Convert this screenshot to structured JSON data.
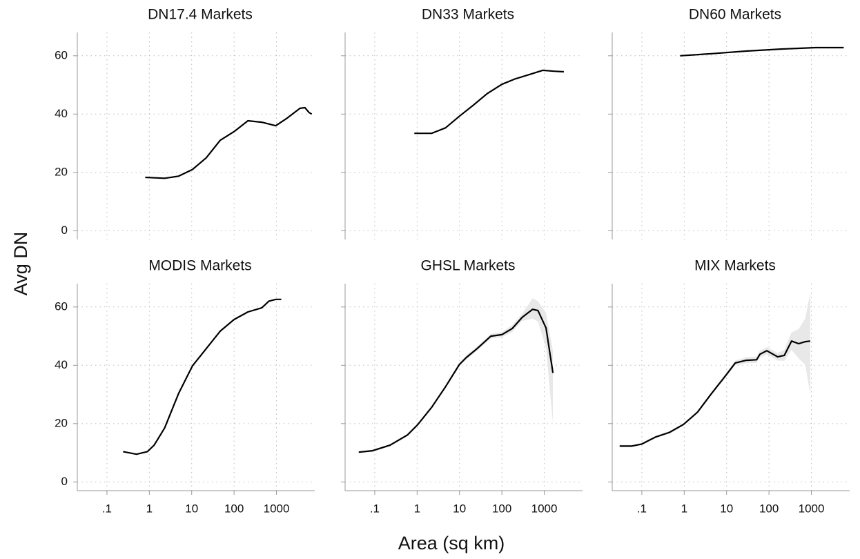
{
  "ylabel": "Avg DN",
  "xlabel": "Area (sq km)",
  "chart_data": [
    {
      "type": "line",
      "title": "DN17.4 Markets",
      "xscale": "log",
      "grid": true,
      "x_tick_labels": false,
      "y_tick_labels": true,
      "color": "#000000",
      "band_color": "#e8e8e8",
      "xlim": [
        0.02,
        8000
      ],
      "ylim": [
        -3,
        68
      ],
      "xticks": [
        0.1,
        1,
        10,
        100,
        1000
      ],
      "yticks": [
        0,
        20,
        40,
        60
      ],
      "x": [
        0.8,
        2.3,
        4.9,
        10.4,
        22,
        47,
        100,
        212,
        450,
        960,
        1700,
        3600,
        4700,
        5900,
        6800
      ],
      "values": [
        18.3,
        18,
        18.7,
        21,
        25,
        31,
        34,
        37.7,
        37.2,
        36,
        38.4,
        42,
        42.2,
        40.5,
        40
      ]
    },
    {
      "type": "line",
      "title": "DN33 Markets",
      "xscale": "log",
      "grid": true,
      "x_tick_labels": false,
      "y_tick_labels": false,
      "color": "#000000",
      "band_color": "#e8e8e8",
      "xlim": [
        0.02,
        8000
      ],
      "ylim": [
        -3,
        68
      ],
      "xticks": [
        0.1,
        1,
        10,
        100,
        1000
      ],
      "yticks": [
        0,
        20,
        40,
        60
      ],
      "x": [
        0.86,
        2.2,
        4.7,
        10,
        21,
        45,
        100,
        200,
        430,
        920,
        1700,
        2900
      ],
      "values": [
        33.4,
        33.4,
        35.3,
        39.3,
        43,
        47,
        50.2,
        52,
        53.5,
        55,
        54.7,
        54.5
      ]
    },
    {
      "type": "line",
      "title": "DN60 Markets",
      "xscale": "log",
      "grid": true,
      "x_tick_labels": false,
      "y_tick_labels": false,
      "color": "#000000",
      "band_color": "#e8e8e8",
      "xlim": [
        0.02,
        8000
      ],
      "ylim": [
        -3,
        68
      ],
      "xticks": [
        0.1,
        1,
        10,
        100,
        1000
      ],
      "yticks": [
        0,
        20,
        40,
        60
      ],
      "x": [
        0.8,
        4.4,
        29,
        190,
        1250,
        5800
      ],
      "values": [
        60,
        60.7,
        61.6,
        62.3,
        62.8,
        62.8
      ]
    },
    {
      "type": "line",
      "title": "MODIS Markets",
      "xscale": "log",
      "grid": true,
      "x_tick_labels": true,
      "y_tick_labels": true,
      "color": "#000000",
      "band_color": "#e8e8e8",
      "xlim": [
        0.02,
        8000
      ],
      "ylim": [
        -3,
        68
      ],
      "xticks": [
        {
          "value": 0.1,
          "label": ".1"
        },
        1,
        10,
        100,
        1000
      ],
      "yticks": [
        0,
        20,
        40,
        60
      ],
      "x": [
        0.24,
        0.5,
        0.9,
        1.3,
        2.3,
        4.9,
        10.4,
        22,
        47,
        100,
        212,
        450,
        660,
        960,
        1300
      ],
      "values": [
        10.4,
        9.5,
        10.4,
        12.6,
        18.5,
        30.3,
        39.8,
        45.7,
        51.7,
        55.7,
        58.3,
        59.7,
        62,
        62.6,
        62.6
      ]
    },
    {
      "type": "line",
      "title": "GHSL Markets",
      "xscale": "log",
      "grid": true,
      "x_tick_labels": true,
      "y_tick_labels": false,
      "color": "#000000",
      "band_color": "#e8e8e8",
      "xlim": [
        0.02,
        8000
      ],
      "ylim": [
        -3,
        68
      ],
      "xticks": [
        {
          "value": 0.1,
          "label": ".1"
        },
        1,
        10,
        100,
        1000
      ],
      "yticks": [
        0,
        20,
        40,
        60
      ],
      "x": [
        0.042,
        0.089,
        0.23,
        0.59,
        1.04,
        2.2,
        4.7,
        10,
        14.6,
        26,
        55,
        100,
        175,
        300,
        530,
        710,
        1100,
        1600
      ],
      "values": [
        10.2,
        10.7,
        12.6,
        16.1,
        19.7,
        25.6,
        32.7,
        40.3,
        42.7,
        45.7,
        50,
        50.5,
        52.6,
        56.4,
        59.2,
        58.8,
        52.8,
        37.4
      ],
      "ci_lower": [
        9.8,
        10.3,
        12.2,
        15.7,
        19.3,
        25.2,
        32.2,
        39.7,
        42,
        45,
        49.2,
        49.6,
        51.4,
        55.2,
        56,
        55,
        46,
        20
      ],
      "ci_upper": [
        10.6,
        11.1,
        13,
        16.5,
        20.1,
        26,
        33.2,
        40.9,
        43.4,
        46.4,
        50.8,
        51.4,
        53.8,
        57.6,
        63,
        62,
        58,
        45
      ]
    },
    {
      "type": "line",
      "title": "MIX Markets",
      "xscale": "log",
      "grid": true,
      "x_tick_labels": true,
      "y_tick_labels": false,
      "color": "#000000",
      "band_color": "#e8e8e8",
      "xlim": [
        0.02,
        8000
      ],
      "ylim": [
        -3,
        68
      ],
      "xticks": [
        {
          "value": 0.1,
          "label": ".1"
        },
        1,
        10,
        100,
        1000
      ],
      "yticks": [
        0,
        20,
        40,
        60
      ],
      "x": [
        0.03,
        0.057,
        0.1,
        0.21,
        0.45,
        0.96,
        2.05,
        4.4,
        9.3,
        16,
        29,
        51,
        61,
        89,
        160,
        230,
        340,
        500,
        720,
        940
      ],
      "values": [
        12.3,
        12.3,
        13,
        15.4,
        17,
        19.7,
        23.9,
        30.3,
        36.3,
        40.8,
        41.7,
        41.9,
        43.8,
        45,
        42.9,
        43.4,
        48.3,
        47.4,
        48.1,
        48.3
      ],
      "ci_lower": [
        11.9,
        11.9,
        12.6,
        15,
        16.6,
        19.3,
        23.5,
        29.8,
        35.7,
        40,
        40.7,
        40.8,
        42.6,
        43.8,
        41.6,
        41.5,
        45.3,
        42.4,
        40.1,
        30
      ],
      "ci_upper": [
        12.7,
        12.7,
        13.4,
        15.8,
        17.4,
        20.1,
        24.3,
        30.8,
        36.9,
        41.6,
        42.7,
        43,
        45,
        46.2,
        44.2,
        45.3,
        51.3,
        52.4,
        56.1,
        65
      ]
    }
  ]
}
